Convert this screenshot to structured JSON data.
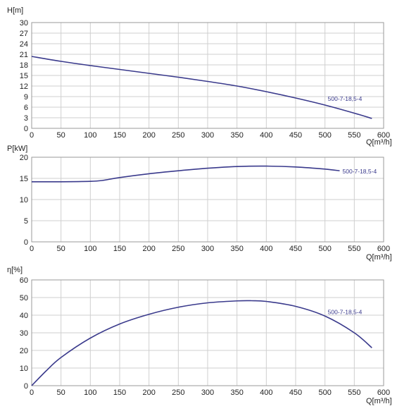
{
  "chart_data": [
    {
      "type": "line",
      "ylabel": "H[m]",
      "xlabel": "Q[m³/h]",
      "xlim": [
        0,
        600
      ],
      "ylim": [
        0,
        30
      ],
      "xticks": [
        0,
        50,
        100,
        150,
        200,
        250,
        300,
        350,
        400,
        450,
        500,
        550,
        600
      ],
      "yticks": [
        0,
        3,
        6,
        9,
        12,
        15,
        18,
        21,
        24,
        27,
        30
      ],
      "grid": true,
      "series": [
        {
          "name": "500-7-18,5-4",
          "x": [
            0,
            50,
            100,
            150,
            200,
            250,
            300,
            350,
            400,
            450,
            500,
            550,
            580
          ],
          "y": [
            20.4,
            19.0,
            17.8,
            16.7,
            15.6,
            14.5,
            13.3,
            12.0,
            10.4,
            8.6,
            6.6,
            4.3,
            2.8
          ]
        }
      ]
    },
    {
      "type": "line",
      "ylabel": "P[kW]",
      "xlabel": "Q[m³/h]",
      "xlim": [
        0,
        600
      ],
      "ylim": [
        0,
        20
      ],
      "xticks": [
        0,
        50,
        100,
        150,
        200,
        250,
        300,
        350,
        400,
        450,
        500,
        550,
        600
      ],
      "yticks": [
        0,
        5,
        10,
        15,
        20
      ],
      "grid": true,
      "series": [
        {
          "name": "500-7-18,5-4",
          "x": [
            0,
            50,
            100,
            120,
            150,
            200,
            250,
            300,
            350,
            400,
            450,
            500,
            525
          ],
          "y": [
            14.2,
            14.2,
            14.3,
            14.5,
            15.2,
            16.1,
            16.8,
            17.4,
            17.8,
            17.9,
            17.7,
            17.2,
            16.8
          ]
        }
      ]
    },
    {
      "type": "line",
      "ylabel": "η[%]",
      "xlabel": "Q[m³/h]",
      "xlim": [
        0,
        600
      ],
      "ylim": [
        0,
        60
      ],
      "xticks": [
        0,
        50,
        100,
        150,
        200,
        250,
        300,
        350,
        400,
        450,
        500,
        550,
        600
      ],
      "yticks": [
        0,
        10,
        20,
        30,
        40,
        50,
        60
      ],
      "grid": true,
      "series": [
        {
          "name": "500-7-18,5-4",
          "x": [
            0,
            25,
            50,
            100,
            150,
            200,
            250,
            300,
            350,
            375,
            400,
            450,
            500,
            550,
            580
          ],
          "y": [
            0,
            8.5,
            16,
            27,
            35,
            40.5,
            44.5,
            47,
            48.1,
            48.2,
            47.8,
            45,
            39.5,
            30,
            21.5
          ]
        }
      ]
    }
  ]
}
